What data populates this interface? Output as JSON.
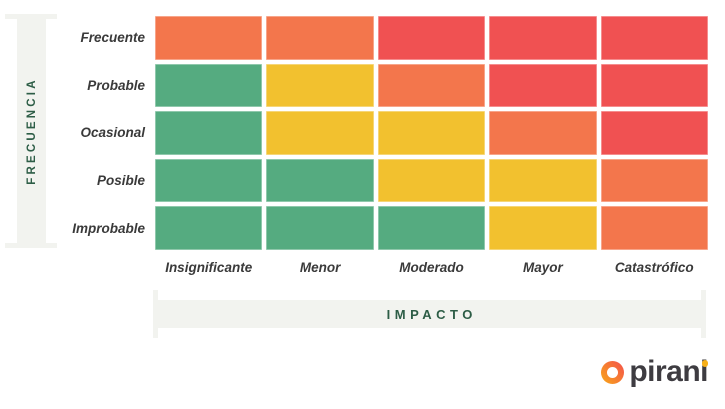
{
  "chart_data": {
    "type": "heatmap",
    "title": "",
    "x_axis_label": "IMPACTO",
    "y_axis_label": "FRECUENCIA",
    "x_categories": [
      "Insignificante",
      "Menor",
      "Moderado",
      "Mayor",
      "Catastrófico"
    ],
    "y_categories": [
      "Frecuente",
      "Probable",
      "Ocasional",
      "Posible",
      "Improbable"
    ],
    "cells": [
      [
        "orange",
        "orange",
        "red",
        "red",
        "red"
      ],
      [
        "green",
        "yellow",
        "orange",
        "red",
        "red"
      ],
      [
        "green",
        "yellow",
        "yellow",
        "orange",
        "red"
      ],
      [
        "green",
        "green",
        "yellow",
        "yellow",
        "orange"
      ],
      [
        "green",
        "green",
        "green",
        "yellow",
        "orange"
      ]
    ],
    "palette": {
      "green": "#55ab80",
      "yellow": "#f2c12f",
      "orange": "#f3764c",
      "red": "#f05152"
    },
    "legend": "none",
    "grid_gap_color": "#ffffff",
    "axis_bar_color": "#f2f3ef",
    "axis_text_color": "#2d5d46",
    "label_text_color": "#3a3a3a"
  },
  "logo": {
    "brand": "pirani",
    "ring_gradient_start": "#f8a818",
    "ring_gradient_end": "#f4504d",
    "i_dot_color": "#f7b019",
    "text_color": "#3e3c41"
  }
}
